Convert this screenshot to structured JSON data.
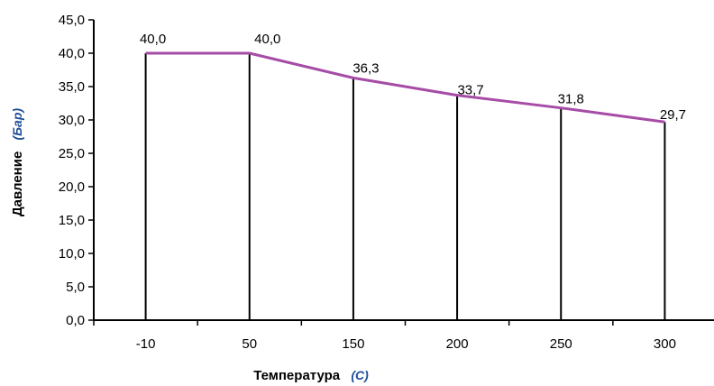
{
  "chart_data": {
    "type": "line",
    "categories": [
      "-10",
      "50",
      "150",
      "200",
      "250",
      "300"
    ],
    "values": [
      40.0,
      40.0,
      36.3,
      33.7,
      31.8,
      29.7
    ],
    "data_labels": [
      "40,0",
      "40,0",
      "36,3",
      "33,7",
      "31,8",
      "29,7"
    ],
    "y_ticks": [
      "0,0",
      "5,0",
      "10,0",
      "15,0",
      "20,0",
      "25,0",
      "30,0",
      "35,0",
      "40,0",
      "45,0"
    ],
    "ylim": [
      0,
      45
    ],
    "xlabel": {
      "text": "Температура",
      "unit": "(C)"
    },
    "ylabel": {
      "text": "Давление",
      "unit": "(Бар)"
    },
    "grid": false,
    "drop_lines": true,
    "legend": "none",
    "colors": {
      "line": "#A64CA6",
      "drop_line": "#000000",
      "axis": "#000000",
      "unit_text": "#1F4E96"
    }
  }
}
